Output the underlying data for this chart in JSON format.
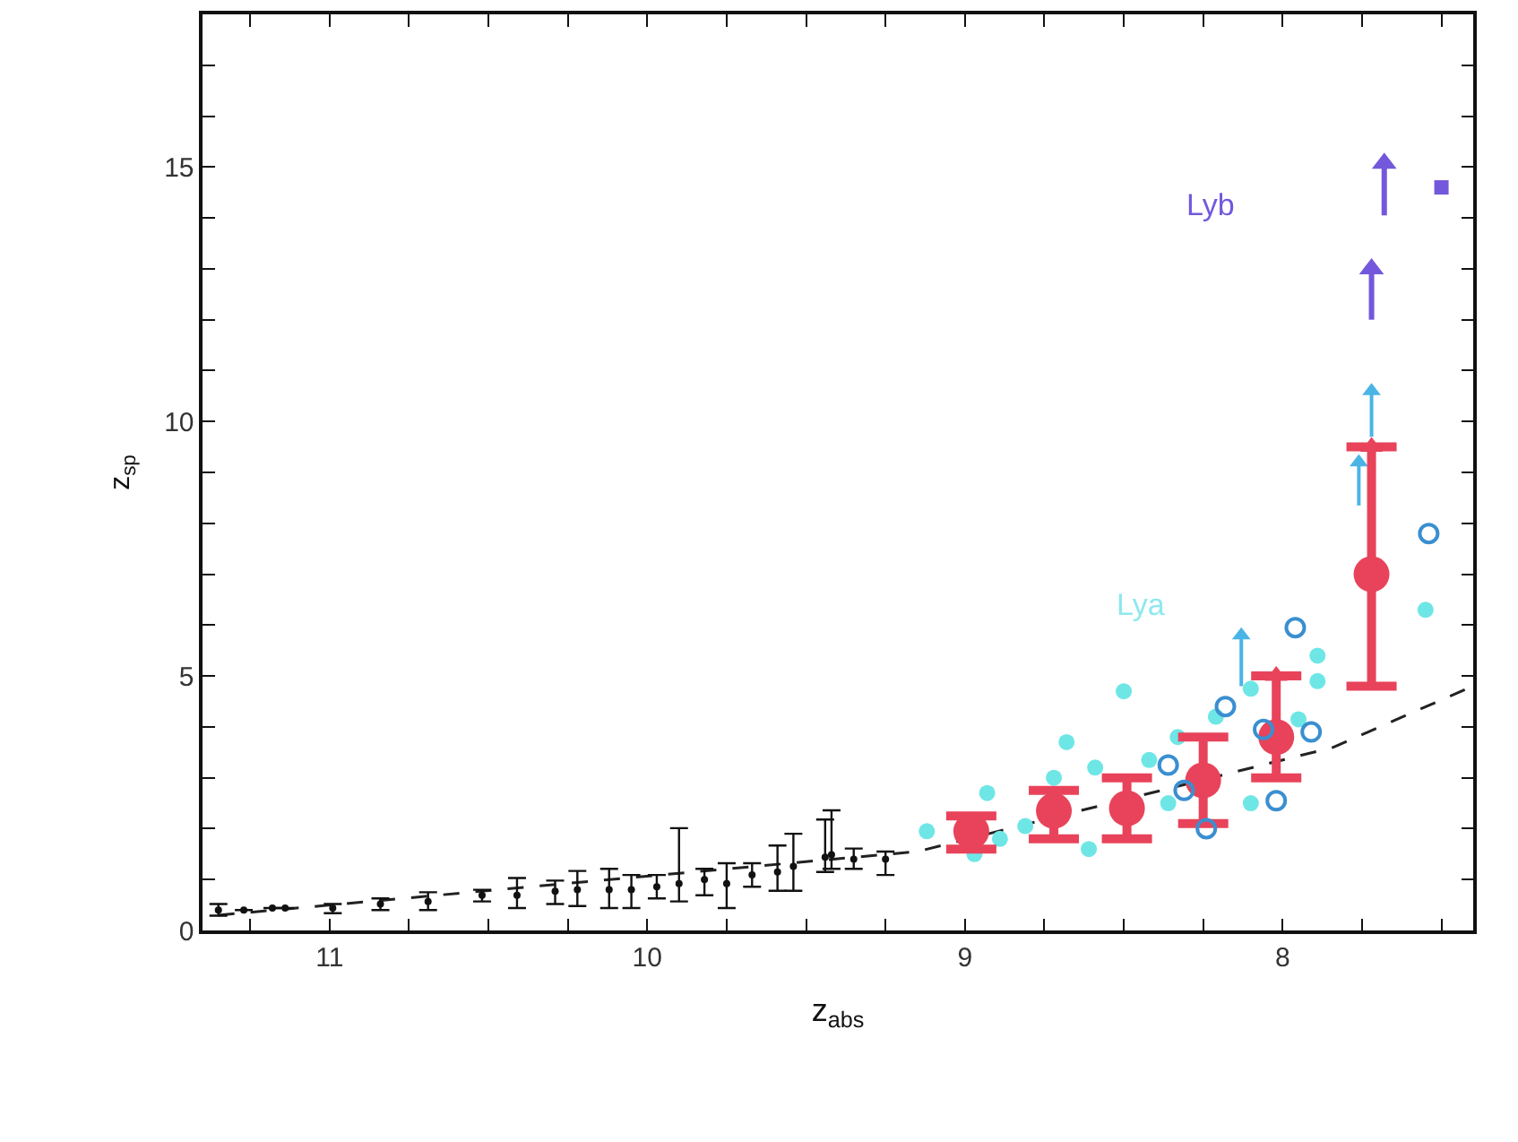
{
  "chart_data": {
    "type": "scatter",
    "xlabel": "z$_{abs}$",
    "ylabel": "z$_{sp}$",
    "xlim": [
      11.4,
      7.4
    ],
    "ylim": [
      0,
      18
    ],
    "xticks": [
      {
        "value": 11.25,
        "label": null
      },
      {
        "value": 11,
        "label": "11"
      },
      {
        "value": 10.75,
        "label": null
      },
      {
        "value": 10.5,
        "label": null
      },
      {
        "value": 10.25,
        "label": null
      },
      {
        "value": 10,
        "label": "10"
      },
      {
        "value": 9.75,
        "label": null
      },
      {
        "value": 9.5,
        "label": null
      },
      {
        "value": 9.25,
        "label": null
      },
      {
        "value": 9,
        "label": "9"
      },
      {
        "value": 8.75,
        "label": null
      },
      {
        "value": 8.5,
        "label": null
      },
      {
        "value": 8.25,
        "label": null
      },
      {
        "value": 8,
        "label": "8"
      },
      {
        "value": 7.75,
        "label": null
      },
      {
        "value": 7.5,
        "label": null
      }
    ],
    "yticks": [
      0,
      {
        "value": 1,
        "label": null
      },
      {
        "value": 2,
        "label": null
      },
      {
        "value": 3,
        "label": null
      },
      {
        "value": 4,
        "label": null
      },
      5,
      {
        "value": 6,
        "label": null
      },
      {
        "value": 7,
        "label": null
      },
      {
        "value": 8,
        "label": null
      },
      {
        "value": 9,
        "label": null
      },
      10,
      {
        "value": 11,
        "label": null
      },
      {
        "value": 12,
        "label": null
      },
      {
        "value": 13,
        "label": null
      },
      {
        "value": 14,
        "label": null
      },
      15,
      {
        "value": 16,
        "label": null
      },
      {
        "value": 17,
        "label": null
      }
    ],
    "series": [
      {
        "type": "line",
        "line_style": "dashed",
        "marker": "none",
        "color": "#222222",
        "x": [
          11.35,
          9.15,
          7.84,
          7.42
        ],
        "values": [
          0.3,
          1.55,
          3.6,
          4.75
        ]
      },
      {
        "marker": "circle",
        "color": "#111111",
        "x": [
          11.35,
          11.27,
          11.18,
          11.14,
          10.99,
          10.84,
          10.69,
          10.52,
          10.41,
          10.29,
          10.22,
          10.12,
          10.05,
          9.97,
          9.9,
          9.82,
          9.75,
          9.67,
          9.59,
          9.54,
          9.44,
          9.42,
          9.35,
          9.25
        ],
        "values": [
          0.4,
          0.4,
          0.44,
          0.44,
          0.44,
          0.52,
          0.57,
          0.69,
          0.69,
          0.77,
          0.8,
          0.8,
          0.8,
          0.86,
          0.92,
          1.0,
          0.92,
          1.09,
          1.15,
          1.26,
          1.44,
          1.49,
          1.4,
          1.4
        ],
        "errors": [
          [
            0.29,
            0.52
          ],
          null,
          null,
          null,
          [
            0.34,
            0.52
          ],
          [
            0.4,
            0.63
          ],
          [
            0.4,
            0.75
          ],
          [
            0.57,
            0.8
          ],
          [
            0.44,
            1.03
          ],
          [
            0.52,
            0.98
          ],
          [
            0.48,
            1.17
          ],
          [
            0.44,
            1.21
          ],
          [
            0.44,
            1.09
          ],
          [
            0.63,
            1.09
          ],
          [
            0.57,
            2.01
          ],
          [
            0.69,
            1.21
          ],
          [
            0.44,
            1.32
          ],
          [
            0.86,
            1.32
          ],
          [
            0.78,
            1.67
          ],
          [
            0.78,
            1.9
          ],
          [
            1.15,
            2.18
          ],
          [
            1.21,
            2.36
          ],
          [
            1.21,
            1.61
          ],
          [
            1.09,
            1.55
          ]
        ]
      },
      {
        "marker": "circle",
        "color": "#6fe6e6",
        "x": [
          9.12,
          8.93,
          8.68,
          8.5,
          8.59,
          8.72,
          8.97,
          8.61,
          8.42,
          8.33,
          8.21,
          8.1,
          7.89,
          7.89,
          7.55,
          7.95,
          8.1,
          8.36,
          8.81,
          8.89
        ],
        "values": [
          1.95,
          2.7,
          3.7,
          4.7,
          3.2,
          3.0,
          1.5,
          1.6,
          3.35,
          3.8,
          4.2,
          4.75,
          5.4,
          4.9,
          6.3,
          4.15,
          2.5,
          2.5,
          2.05,
          1.8
        ]
      },
      {
        "marker": "circle",
        "color": "#3a8fd0",
        "x": [
          7.96,
          8.18,
          8.36,
          8.24,
          8.02,
          7.91,
          8.06,
          8.31,
          7.54
        ],
        "values": [
          5.95,
          4.4,
          3.25,
          2.0,
          2.55,
          3.9,
          3.95,
          2.75,
          7.8
        ]
      },
      {
        "marker": "triangle",
        "color": "#4ab4e6",
        "x": [
          7.72,
          7.76,
          8.13
        ],
        "values": [
          10.6,
          9.2,
          5.8
        ],
        "errors": [
          [
            9.7,
            10.6
          ],
          [
            8.35,
            9.2
          ],
          [
            4.8,
            5.8
          ]
        ]
      },
      {
        "marker": "triangle",
        "color": "#7358dc",
        "x": [
          7.68,
          7.72
        ],
        "values": [
          15.07,
          13.0
        ],
        "errors": [
          [
            14.05,
            15.07
          ],
          [
            12.0,
            13.0
          ]
        ]
      },
      {
        "marker": "square",
        "color": "#7358dc",
        "x": [
          7.5
        ],
        "values": [
          14.6
        ]
      },
      {
        "marker": "circle",
        "color": "#e8435a",
        "x": [
          8.98,
          8.72,
          8.49,
          8.25,
          8.02,
          7.72
        ],
        "values": [
          1.95,
          2.35,
          2.4,
          2.95,
          3.8,
          7.0
        ],
        "errors": [
          [
            1.6,
            2.25
          ],
          [
            1.8,
            2.75
          ],
          [
            1.8,
            3.0
          ],
          [
            2.1,
            3.8
          ],
          [
            3.0,
            5.0
          ],
          [
            4.8,
            9.5
          ]
        ]
      },
      {
        "marker": "triangle",
        "color": "#e8435a",
        "x": [
          8.02,
          7.72
        ],
        "values": [
          5.0,
          9.5
        ]
      }
    ],
    "annotations": [
      "Lya",
      "Lyb"
    ]
  }
}
